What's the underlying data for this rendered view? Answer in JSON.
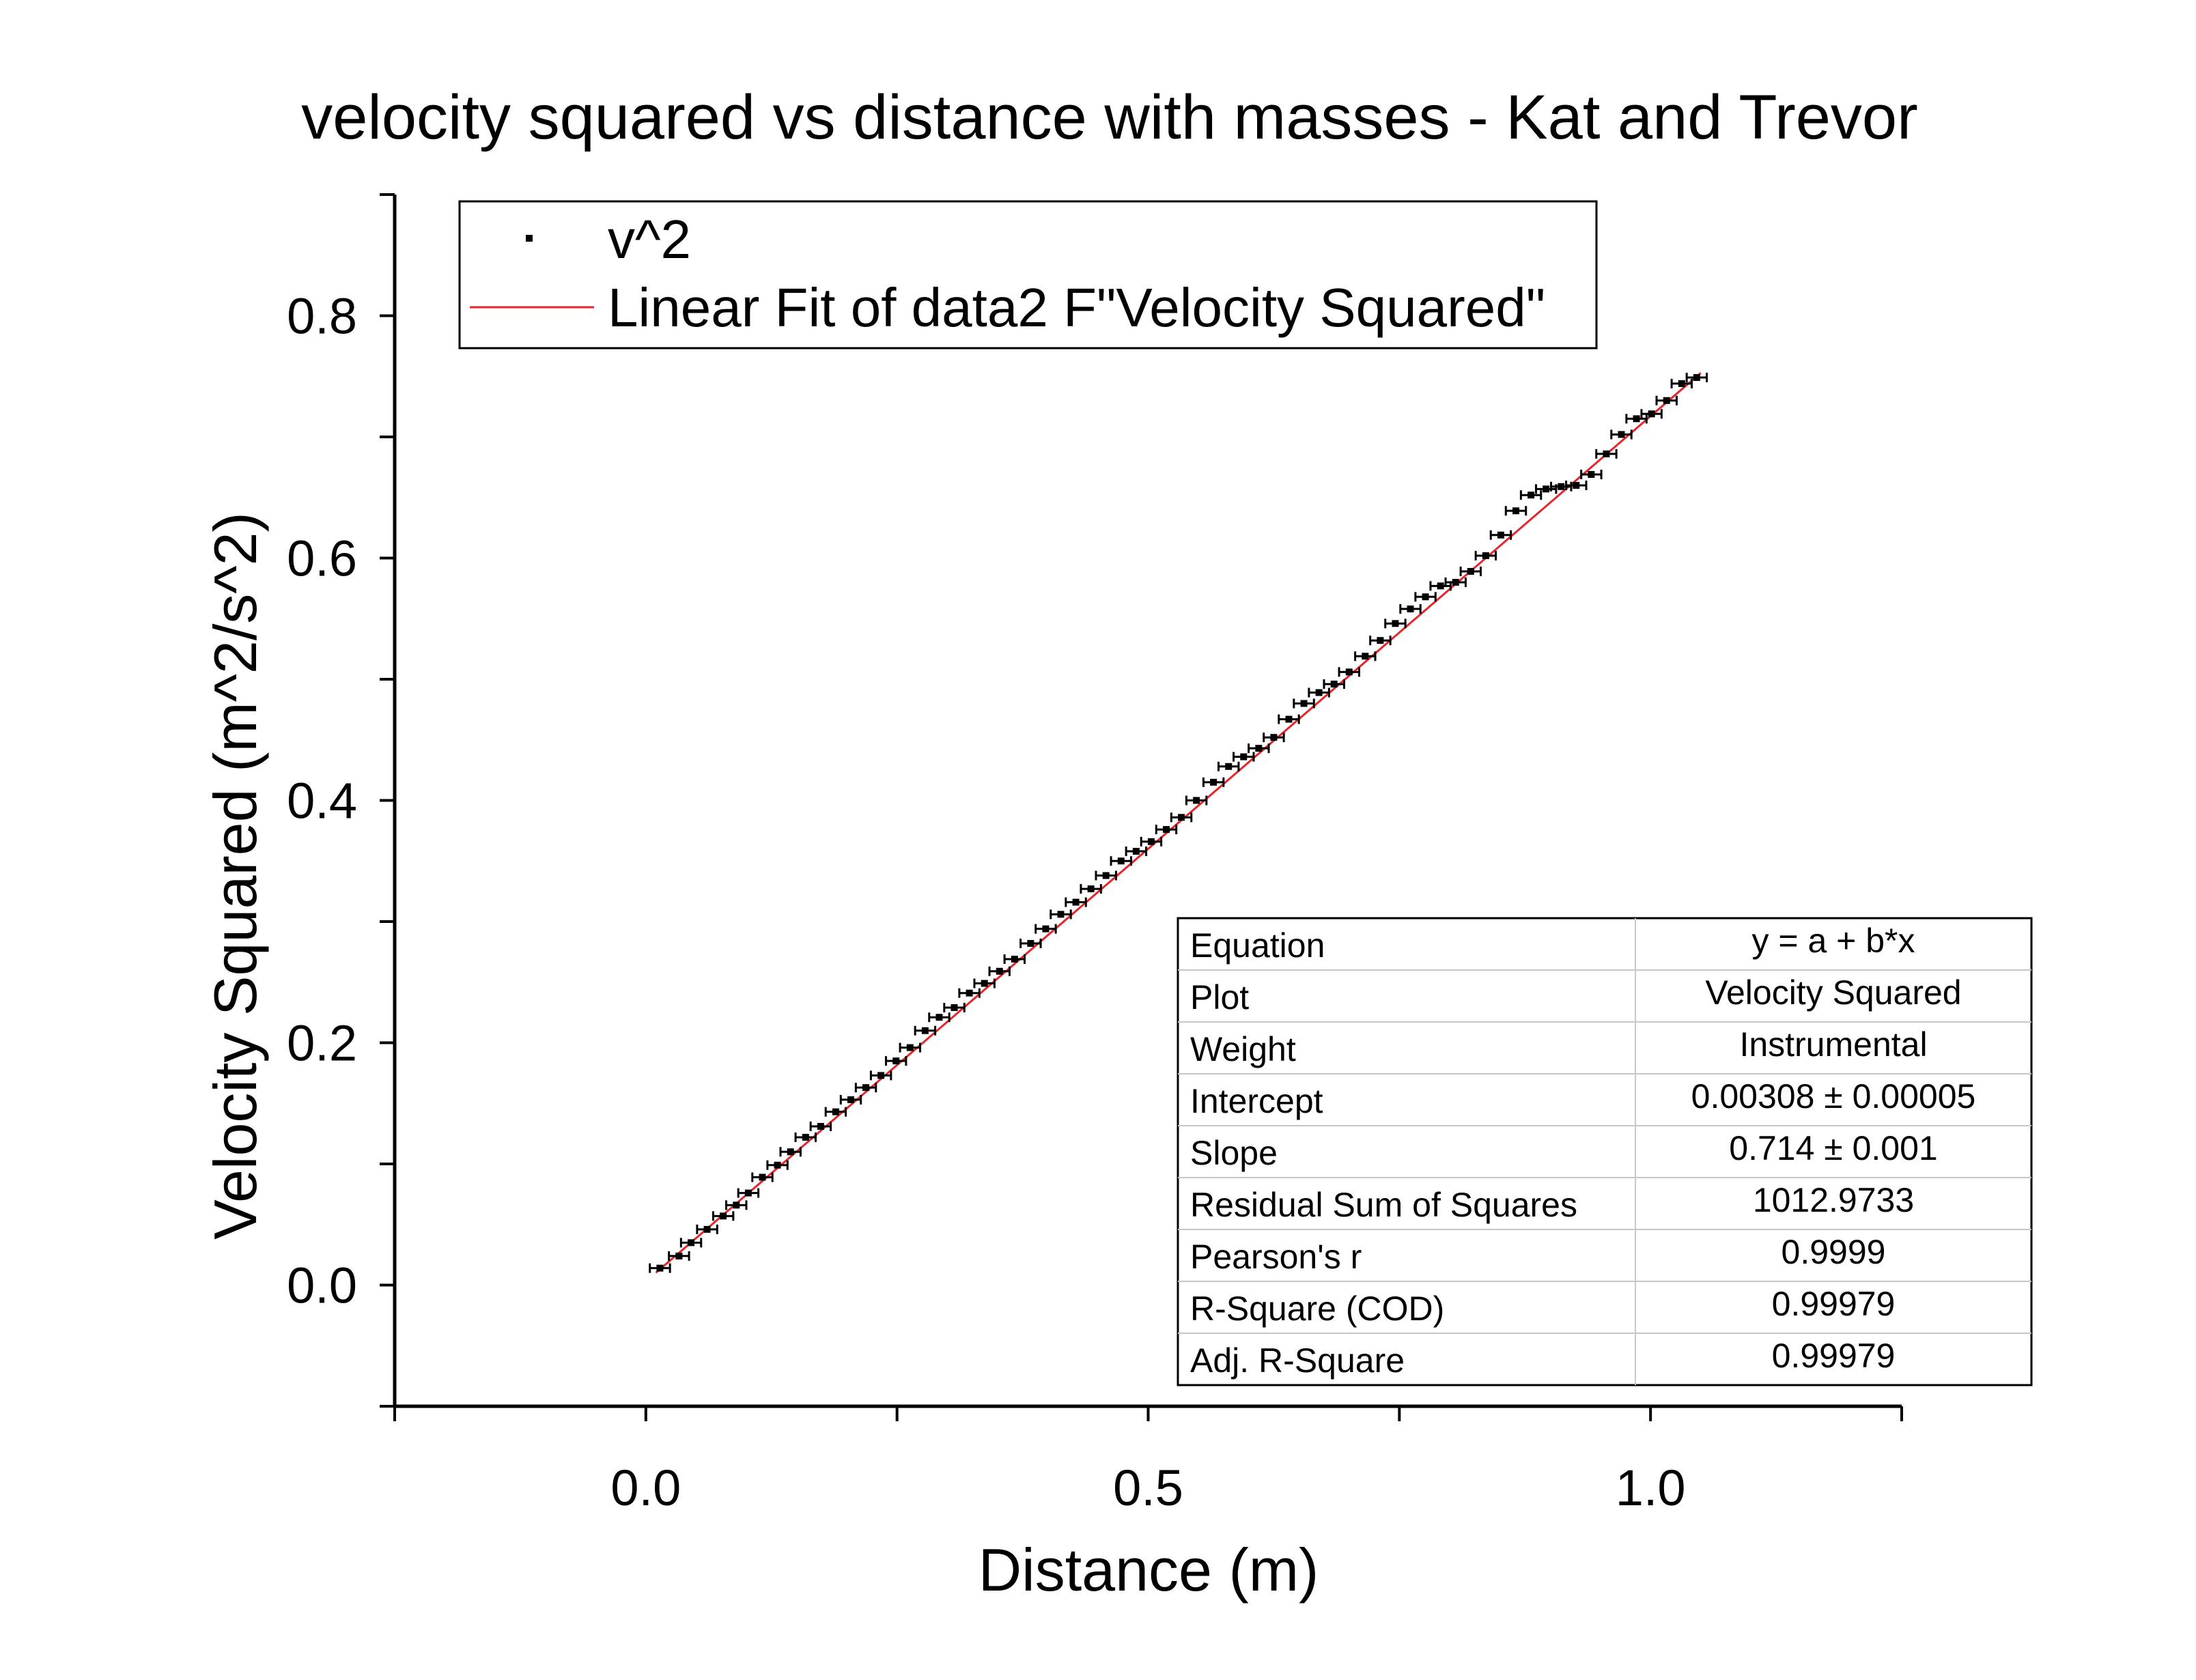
{
  "chart_data": {
    "type": "scatter",
    "title": "velocity squared vs distance with masses - Kat and Trevor",
    "xlabel": "Distance (m)",
    "ylabel": "Velocity Squared (m^2/s^2)",
    "xlim": [
      -0.25,
      1.25
    ],
    "ylim": [
      -0.1,
      0.9
    ],
    "x_ticks": [
      "0.0",
      "0.5",
      "1.0"
    ],
    "y_ticks": [
      "0.0",
      "0.2",
      "0.4",
      "0.6",
      "0.8"
    ],
    "grid": false,
    "legend": {
      "position": "top-left",
      "entries": [
        "v^2",
        "Linear Fit of data2 F\"Velocity Squared\""
      ]
    },
    "colors": {
      "points": "#000000",
      "fit_line": "#e8252b",
      "axes": "#000000"
    },
    "series": [
      {
        "name": "v^2",
        "marker": "square",
        "x_error": 0.01,
        "points": [
          [
            0.014,
            0.014
          ],
          [
            0.033,
            0.024
          ],
          [
            0.045,
            0.035
          ],
          [
            0.061,
            0.046
          ],
          [
            0.077,
            0.057
          ],
          [
            0.09,
            0.066
          ],
          [
            0.102,
            0.076
          ],
          [
            0.116,
            0.089
          ],
          [
            0.131,
            0.099
          ],
          [
            0.144,
            0.11
          ],
          [
            0.159,
            0.122
          ],
          [
            0.174,
            0.131
          ],
          [
            0.189,
            0.143
          ],
          [
            0.204,
            0.153
          ],
          [
            0.219,
            0.163
          ],
          [
            0.234,
            0.173
          ],
          [
            0.249,
            0.185
          ],
          [
            0.263,
            0.196
          ],
          [
            0.278,
            0.21
          ],
          [
            0.292,
            0.221
          ],
          [
            0.307,
            0.229
          ],
          [
            0.322,
            0.241
          ],
          [
            0.337,
            0.249
          ],
          [
            0.352,
            0.259
          ],
          [
            0.367,
            0.269
          ],
          [
            0.383,
            0.282
          ],
          [
            0.398,
            0.294
          ],
          [
            0.413,
            0.306
          ],
          [
            0.428,
            0.316
          ],
          [
            0.443,
            0.327
          ],
          [
            0.458,
            0.338
          ],
          [
            0.473,
            0.35
          ],
          [
            0.488,
            0.358
          ],
          [
            0.503,
            0.366
          ],
          [
            0.518,
            0.376
          ],
          [
            0.533,
            0.386
          ],
          [
            0.548,
            0.4
          ],
          [
            0.565,
            0.415
          ],
          [
            0.58,
            0.428
          ],
          [
            0.595,
            0.436
          ],
          [
            0.61,
            0.443
          ],
          [
            0.625,
            0.452
          ],
          [
            0.64,
            0.467
          ],
          [
            0.655,
            0.48
          ],
          [
            0.67,
            0.489
          ],
          [
            0.685,
            0.496
          ],
          [
            0.7,
            0.506
          ],
          [
            0.716,
            0.519
          ],
          [
            0.731,
            0.532
          ],
          [
            0.746,
            0.546
          ],
          [
            0.761,
            0.558
          ],
          [
            0.776,
            0.568
          ],
          [
            0.791,
            0.577
          ],
          [
            0.806,
            0.58
          ],
          [
            0.821,
            0.589
          ],
          [
            0.836,
            0.602
          ],
          [
            0.851,
            0.619
          ],
          [
            0.866,
            0.639
          ],
          [
            0.881,
            0.652
          ],
          [
            0.896,
            0.657
          ],
          [
            0.911,
            0.659
          ],
          [
            0.926,
            0.66
          ],
          [
            0.941,
            0.669
          ],
          [
            0.956,
            0.686
          ],
          [
            0.971,
            0.702
          ],
          [
            0.986,
            0.715
          ],
          [
            1.001,
            0.719
          ],
          [
            1.016,
            0.73
          ],
          [
            1.031,
            0.744
          ],
          [
            1.046,
            0.749
          ]
        ]
      }
    ],
    "fit": {
      "name": "Linear Fit of data2 F\"Velocity Squared\"",
      "intercept": 0.00308,
      "slope": 0.714,
      "x_range": [
        0.01,
        1.05
      ]
    },
    "stats_table": {
      "position": "bottom-right",
      "rows": [
        {
          "label": "Equation",
          "value": "y = a + b*x"
        },
        {
          "label": "Plot",
          "value": "Velocity Squared"
        },
        {
          "label": "Weight",
          "value": "Instrumental"
        },
        {
          "label": "Intercept",
          "value": "0.00308 ± 0.00005"
        },
        {
          "label": "Slope",
          "value": "0.714 ± 0.001"
        },
        {
          "label": "Residual Sum of Squares",
          "value": "1012.9733"
        },
        {
          "label": "Pearson's r",
          "value": "0.9999"
        },
        {
          "label": "R-Square (COD)",
          "value": "0.99979"
        },
        {
          "label": "Adj. R-Square",
          "value": "0.99979"
        }
      ]
    }
  }
}
